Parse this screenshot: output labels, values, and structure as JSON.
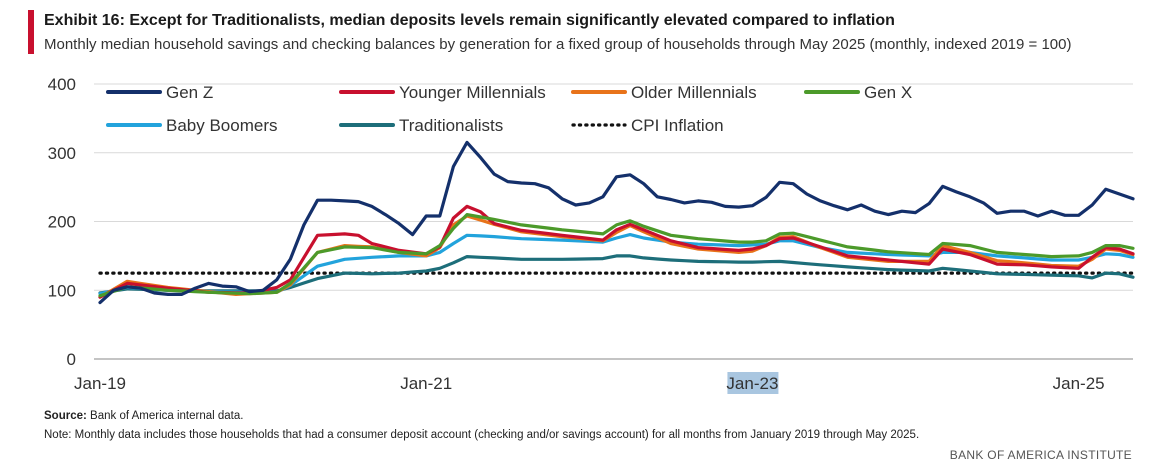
{
  "header": {
    "title": "Exhibit 16: Except for Traditionalists, median deposits levels remain significantly elevated compared to inflation",
    "subtitle": "Monthly median household savings and checking balances by generation for a fixed group of households through May 2025 (monthly, indexed 2019 = 100)",
    "accent_color": "#c8102e"
  },
  "chart_data": {
    "type": "line",
    "title": "Exhibit 16: Except for Traditionalists, median deposits levels remain significantly elevated compared to inflation",
    "xlabel": "",
    "ylabel": "",
    "ylim": [
      0,
      400
    ],
    "yticks": [
      0,
      100,
      200,
      300,
      400
    ],
    "grid": true,
    "legend_position": "top",
    "x_start": "2019-01",
    "x_end": "2025-05",
    "n_months": 77,
    "xtick_labels": [
      {
        "label": "Jan-19",
        "month_index": 0
      },
      {
        "label": "Jan-21",
        "month_index": 24
      },
      {
        "label": "Jan-23",
        "month_index": 48,
        "highlighted": true
      },
      {
        "label": "Jan-25",
        "month_index": 72
      }
    ],
    "series": [
      {
        "name": "Gen Z",
        "color": "#14306b",
        "style": "solid",
        "keyframes": [
          [
            0,
            82
          ],
          [
            1,
            100
          ],
          [
            2,
            105
          ],
          [
            3,
            103
          ],
          [
            4,
            96
          ],
          [
            5,
            94
          ],
          [
            6,
            94
          ],
          [
            7,
            103
          ],
          [
            8,
            110
          ],
          [
            9,
            106
          ],
          [
            10,
            105
          ],
          [
            11,
            98
          ],
          [
            12,
            100
          ],
          [
            13,
            115
          ],
          [
            14,
            145
          ],
          [
            15,
            195
          ],
          [
            16,
            231
          ],
          [
            17,
            231
          ],
          [
            18,
            230
          ],
          [
            19,
            229
          ],
          [
            20,
            222
          ],
          [
            21,
            210
          ],
          [
            22,
            197
          ],
          [
            23,
            181
          ],
          [
            24,
            208
          ],
          [
            25,
            208
          ],
          [
            26,
            280
          ],
          [
            27,
            315
          ],
          [
            28,
            293
          ],
          [
            29,
            269
          ],
          [
            30,
            258
          ],
          [
            31,
            256
          ],
          [
            32,
            255
          ],
          [
            33,
            249
          ],
          [
            34,
            233
          ],
          [
            35,
            224
          ],
          [
            36,
            227
          ],
          [
            37,
            236
          ],
          [
            38,
            265
          ],
          [
            39,
            268
          ],
          [
            40,
            255
          ],
          [
            41,
            236
          ],
          [
            42,
            232
          ],
          [
            43,
            227
          ],
          [
            44,
            230
          ],
          [
            45,
            228
          ],
          [
            46,
            222
          ],
          [
            47,
            221
          ],
          [
            48,
            223
          ],
          [
            49,
            235
          ],
          [
            50,
            257
          ],
          [
            51,
            255
          ],
          [
            52,
            240
          ],
          [
            53,
            230
          ],
          [
            54,
            223
          ],
          [
            55,
            217
          ],
          [
            56,
            224
          ],
          [
            57,
            215
          ],
          [
            58,
            210
          ],
          [
            59,
            215
          ],
          [
            60,
            213
          ],
          [
            61,
            226
          ],
          [
            62,
            251
          ],
          [
            63,
            243
          ],
          [
            64,
            236
          ],
          [
            65,
            227
          ],
          [
            66,
            212
          ],
          [
            67,
            215
          ],
          [
            68,
            215
          ],
          [
            69,
            208
          ],
          [
            70,
            215
          ],
          [
            71,
            209
          ],
          [
            72,
            209
          ],
          [
            73,
            224
          ],
          [
            74,
            247
          ],
          [
            75,
            240
          ],
          [
            76,
            233
          ]
        ]
      },
      {
        "name": "Younger Millennials",
        "color": "#c8102e",
        "style": "solid",
        "keyframes": [
          [
            0,
            90
          ],
          [
            2,
            110
          ],
          [
            5,
            103
          ],
          [
            8,
            97
          ],
          [
            11,
            96
          ],
          [
            13,
            104
          ],
          [
            14,
            115
          ],
          [
            16,
            180
          ],
          [
            18,
            182
          ],
          [
            19,
            180
          ],
          [
            20,
            168
          ],
          [
            22,
            158
          ],
          [
            24,
            153
          ],
          [
            25,
            163
          ],
          [
            26,
            205
          ],
          [
            27,
            222
          ],
          [
            28,
            214
          ],
          [
            29,
            197
          ],
          [
            31,
            187
          ],
          [
            34,
            180
          ],
          [
            37,
            173
          ],
          [
            38,
            188
          ],
          [
            39,
            196
          ],
          [
            40,
            188
          ],
          [
            42,
            172
          ],
          [
            44,
            162
          ],
          [
            47,
            158
          ],
          [
            48,
            160
          ],
          [
            49,
            165
          ],
          [
            50,
            175
          ],
          [
            51,
            176
          ],
          [
            53,
            163
          ],
          [
            55,
            150
          ],
          [
            58,
            144
          ],
          [
            61,
            138
          ],
          [
            62,
            160
          ],
          [
            64,
            152
          ],
          [
            66,
            138
          ],
          [
            68,
            137
          ],
          [
            70,
            134
          ],
          [
            72,
            132
          ],
          [
            73,
            148
          ],
          [
            74,
            162
          ],
          [
            75,
            160
          ],
          [
            76,
            153
          ]
        ]
      },
      {
        "name": "Older Millennials",
        "color": "#e8731a",
        "style": "solid",
        "keyframes": [
          [
            0,
            90
          ],
          [
            2,
            113
          ],
          [
            5,
            104
          ],
          [
            8,
            98
          ],
          [
            10,
            94
          ],
          [
            13,
            97
          ],
          [
            14,
            108
          ],
          [
            16,
            155
          ],
          [
            18,
            165
          ],
          [
            20,
            163
          ],
          [
            22,
            155
          ],
          [
            24,
            150
          ],
          [
            25,
            162
          ],
          [
            26,
            195
          ],
          [
            27,
            208
          ],
          [
            29,
            196
          ],
          [
            31,
            185
          ],
          [
            34,
            178
          ],
          [
            37,
            172
          ],
          [
            38,
            184
          ],
          [
            39,
            194
          ],
          [
            40,
            185
          ],
          [
            42,
            168
          ],
          [
            44,
            160
          ],
          [
            47,
            155
          ],
          [
            48,
            157
          ],
          [
            49,
            165
          ],
          [
            50,
            177
          ],
          [
            51,
            178
          ],
          [
            53,
            162
          ],
          [
            55,
            148
          ],
          [
            58,
            142
          ],
          [
            61,
            142
          ],
          [
            62,
            165
          ],
          [
            64,
            155
          ],
          [
            66,
            143
          ],
          [
            68,
            140
          ],
          [
            70,
            136
          ],
          [
            72,
            135
          ],
          [
            73,
            145
          ],
          [
            74,
            160
          ],
          [
            75,
            158
          ],
          [
            76,
            152
          ]
        ]
      },
      {
        "name": "Gen X",
        "color": "#4c9a2a",
        "style": "solid",
        "keyframes": [
          [
            0,
            92
          ],
          [
            2,
            105
          ],
          [
            5,
            100
          ],
          [
            8,
            97
          ],
          [
            11,
            95
          ],
          [
            13,
            97
          ],
          [
            14,
            110
          ],
          [
            16,
            155
          ],
          [
            18,
            163
          ],
          [
            20,
            162
          ],
          [
            22,
            155
          ],
          [
            24,
            153
          ],
          [
            25,
            165
          ],
          [
            26,
            190
          ],
          [
            27,
            210
          ],
          [
            29,
            203
          ],
          [
            31,
            195
          ],
          [
            34,
            188
          ],
          [
            37,
            182
          ],
          [
            38,
            195
          ],
          [
            39,
            201
          ],
          [
            40,
            193
          ],
          [
            42,
            180
          ],
          [
            44,
            175
          ],
          [
            47,
            170
          ],
          [
            48,
            170
          ],
          [
            49,
            172
          ],
          [
            50,
            182
          ],
          [
            51,
            183
          ],
          [
            53,
            173
          ],
          [
            55,
            163
          ],
          [
            58,
            156
          ],
          [
            61,
            152
          ],
          [
            62,
            168
          ],
          [
            64,
            165
          ],
          [
            66,
            155
          ],
          [
            68,
            152
          ],
          [
            70,
            149
          ],
          [
            72,
            150
          ],
          [
            73,
            155
          ],
          [
            74,
            165
          ],
          [
            75,
            165
          ],
          [
            76,
            161
          ]
        ]
      },
      {
        "name": "Baby Boomers",
        "color": "#22a3dc",
        "style": "solid",
        "keyframes": [
          [
            0,
            95
          ],
          [
            2,
            104
          ],
          [
            5,
            100
          ],
          [
            8,
            98
          ],
          [
            11,
            97
          ],
          [
            13,
            97
          ],
          [
            14,
            107
          ],
          [
            16,
            135
          ],
          [
            18,
            145
          ],
          [
            20,
            148
          ],
          [
            22,
            150
          ],
          [
            24,
            150
          ],
          [
            25,
            155
          ],
          [
            26,
            168
          ],
          [
            27,
            180
          ],
          [
            29,
            178
          ],
          [
            31,
            175
          ],
          [
            34,
            173
          ],
          [
            37,
            170
          ],
          [
            38,
            176
          ],
          [
            39,
            181
          ],
          [
            40,
            176
          ],
          [
            42,
            170
          ],
          [
            44,
            167
          ],
          [
            47,
            165
          ],
          [
            48,
            166
          ],
          [
            49,
            167
          ],
          [
            50,
            172
          ],
          [
            51,
            172
          ],
          [
            53,
            162
          ],
          [
            55,
            155
          ],
          [
            58,
            152
          ],
          [
            61,
            150
          ],
          [
            62,
            155
          ],
          [
            64,
            155
          ],
          [
            66,
            150
          ],
          [
            68,
            147
          ],
          [
            70,
            144
          ],
          [
            72,
            144
          ],
          [
            73,
            148
          ],
          [
            74,
            153
          ],
          [
            75,
            152
          ],
          [
            76,
            148
          ]
        ]
      },
      {
        "name": "Traditionalists",
        "color": "#1d6e7a",
        "style": "solid",
        "keyframes": [
          [
            0,
            96
          ],
          [
            2,
            102
          ],
          [
            5,
            100
          ],
          [
            8,
            99
          ],
          [
            11,
            99
          ],
          [
            13,
            99
          ],
          [
            14,
            104
          ],
          [
            16,
            117
          ],
          [
            18,
            125
          ],
          [
            20,
            124
          ],
          [
            22,
            125
          ],
          [
            24,
            128
          ],
          [
            25,
            132
          ],
          [
            26,
            140
          ],
          [
            27,
            149
          ],
          [
            29,
            147
          ],
          [
            31,
            145
          ],
          [
            34,
            145
          ],
          [
            37,
            146
          ],
          [
            38,
            150
          ],
          [
            39,
            150
          ],
          [
            40,
            147
          ],
          [
            42,
            144
          ],
          [
            44,
            142
          ],
          [
            47,
            141
          ],
          [
            48,
            141
          ],
          [
            50,
            142
          ],
          [
            53,
            137
          ],
          [
            55,
            134
          ],
          [
            58,
            130
          ],
          [
            61,
            128
          ],
          [
            62,
            132
          ],
          [
            64,
            128
          ],
          [
            66,
            124
          ],
          [
            68,
            123
          ],
          [
            70,
            122
          ],
          [
            72,
            121
          ],
          [
            73,
            118
          ],
          [
            74,
            125
          ],
          [
            75,
            124
          ],
          [
            76,
            119
          ]
        ]
      },
      {
        "name": "CPI Inflation",
        "color": "#111111",
        "style": "dotted",
        "keyframes": [
          [
            0,
            125
          ],
          [
            76,
            125
          ]
        ]
      }
    ]
  },
  "footer": {
    "source_label": "Source:",
    "source_text": "Bank of America internal data.",
    "note": "Note: Monthly data includes those households that had a consumer deposit account (checking and/or savings account) for all months from January 2019 through May 2025.",
    "brand": "BANK OF AMERICA INSTITUTE"
  }
}
